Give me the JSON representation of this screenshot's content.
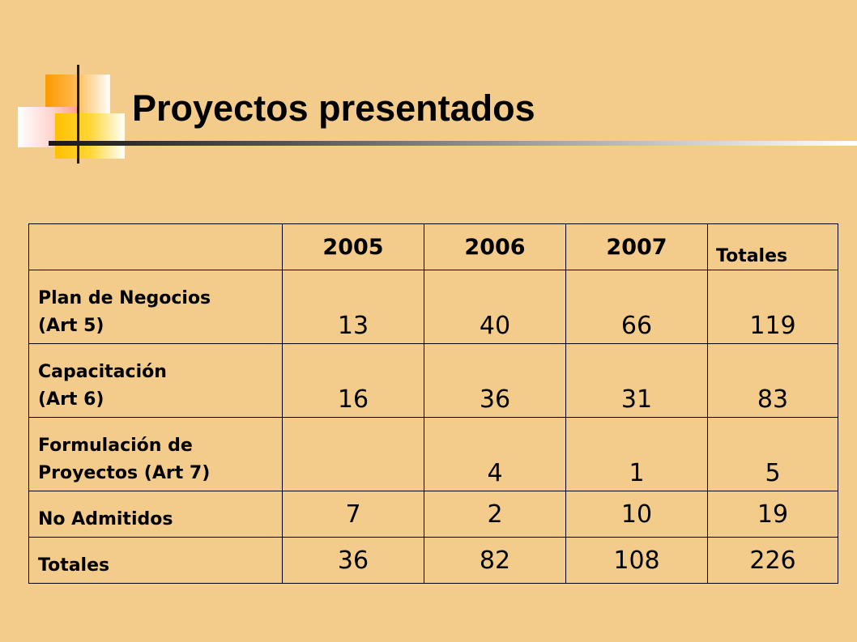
{
  "slide": {
    "title": "Proyectos presentados"
  },
  "colors": {
    "background": "#f3cc8c",
    "deco_orange": "#ff9900",
    "deco_yellow": "#ffc000",
    "deco_pink": "#ff9b8a",
    "text": "#000000"
  },
  "table": {
    "headers": [
      "",
      "2005",
      "2006",
      "2007",
      "Totales"
    ],
    "rows": [
      {
        "label": [
          "Plan de Negocios",
          "(Art 5)"
        ],
        "values": [
          "13",
          "40",
          "66",
          "119"
        ]
      },
      {
        "label": [
          "Capacitación",
          "(Art 6)"
        ],
        "values": [
          "16",
          "36",
          "31",
          "83"
        ]
      },
      {
        "label": [
          "Formulación de",
          "Proyectos (Art 7)"
        ],
        "values": [
          "",
          "4",
          "1",
          "5"
        ]
      },
      {
        "label": [
          "No Admitidos"
        ],
        "values": [
          "7",
          "2",
          "10",
          "19"
        ]
      },
      {
        "label": [
          "Totales"
        ],
        "values": [
          "36",
          "82",
          "108",
          "226"
        ]
      }
    ]
  }
}
